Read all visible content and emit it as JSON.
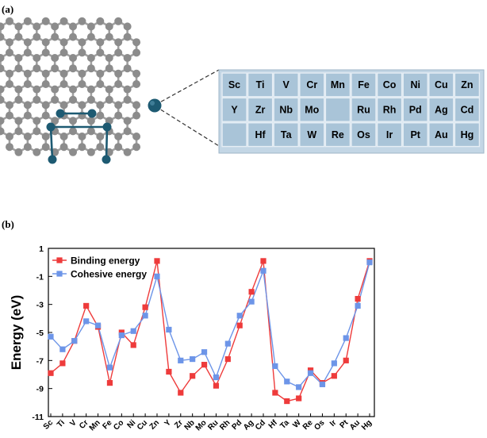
{
  "panel_a": {
    "label": "(a)",
    "periodic_table": {
      "rows": [
        [
          "Sc",
          "Ti",
          "V",
          "Cr",
          "Mn",
          "Fe",
          "Co",
          "Ni",
          "Cu",
          "Zn"
        ],
        [
          "Y",
          "Zr",
          "Nb",
          "Mo",
          "",
          "Ru",
          "Rh",
          "Pd",
          "Ag",
          "Cd"
        ],
        [
          "",
          "Hf",
          "Ta",
          "W",
          "Re",
          "Os",
          "Ir",
          "Pt",
          "Au",
          "Hg"
        ]
      ],
      "cell_fill": "#a9c4d8",
      "border_fill": "#c3d6e5"
    },
    "colors": {
      "carbon": "#8c8c8c",
      "metal": "#1d5a72"
    }
  },
  "panel_b": {
    "label": "(b)",
    "chart_data": {
      "type": "line",
      "title": "",
      "xlabel": "",
      "ylabel": "Energy (eV)",
      "ylim": [
        -11,
        1
      ],
      "yticks": [
        1,
        -1,
        -3,
        -5,
        -7,
        -9,
        -11
      ],
      "categories": [
        "Sc",
        "Ti",
        "V",
        "Cr",
        "Mn",
        "Fe",
        "Co",
        "Ni",
        "Cu",
        "Zn",
        "Y",
        "Zr",
        "Nb",
        "Mo",
        "Ru",
        "Rh",
        "Pd",
        "Ag",
        "Cd",
        "Hf",
        "Ta",
        "W",
        "Re",
        "Os",
        "Ir",
        "Pt",
        "Au",
        "Hg"
      ],
      "series": [
        {
          "name": "Binding energy",
          "color": "#ee3b3b",
          "values": [
            -7.9,
            -7.2,
            -5.6,
            -3.1,
            -4.6,
            -8.6,
            -5.0,
            -5.9,
            -3.2,
            0.1,
            -7.8,
            -9.3,
            -8.1,
            -7.3,
            -8.8,
            -6.9,
            -4.5,
            -2.1,
            0.1,
            -9.3,
            -9.9,
            -9.7,
            -7.7,
            -8.6,
            -8.1,
            -7.0,
            -2.6,
            0.1
          ]
        },
        {
          "name": "Cohesive energy",
          "color": "#6d95e8",
          "values": [
            -5.3,
            -6.2,
            -5.6,
            -4.2,
            -4.5,
            -7.5,
            -5.2,
            -4.9,
            -3.8,
            -1.0,
            -4.8,
            -7.0,
            -6.9,
            -6.4,
            -8.2,
            -5.8,
            -3.8,
            -2.8,
            -0.6,
            -7.4,
            -8.5,
            -8.9,
            -7.9,
            -8.7,
            -7.2,
            -5.4,
            -3.1,
            0.0
          ]
        }
      ],
      "legend_position": "top-left",
      "grid": false
    }
  }
}
